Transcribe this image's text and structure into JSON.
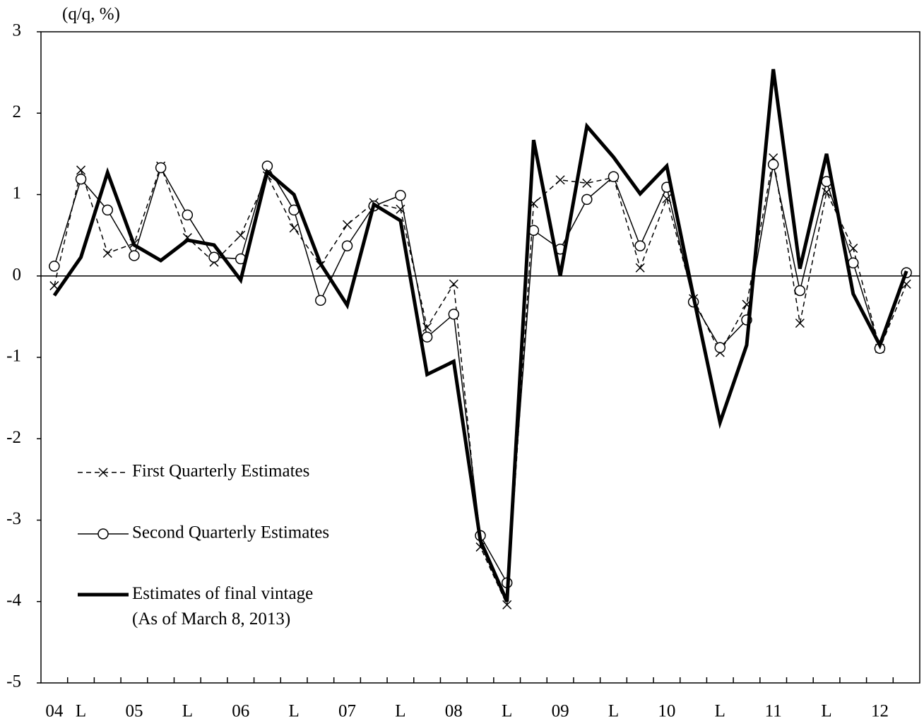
{
  "chart_data": {
    "type": "line",
    "y_axis_label": "(q/q, %)",
    "categories": [
      "04",
      "L",
      null,
      "05",
      null,
      "L",
      null,
      "06",
      null,
      "L",
      null,
      "07",
      null,
      "L",
      null,
      "08",
      null,
      "L",
      null,
      "09",
      null,
      "L",
      null,
      "10",
      null,
      "L",
      null,
      "11",
      null,
      "L",
      null,
      "12",
      null
    ],
    "series": [
      {
        "name": "First Quarterly Estimates",
        "color": "#000000",
        "line_style": "dashed",
        "marker": "x",
        "values": [
          -0.12,
          1.3,
          0.28,
          0.4,
          1.35,
          0.47,
          0.17,
          0.5,
          1.23,
          0.59,
          0.13,
          0.63,
          0.9,
          0.82,
          -0.63,
          -0.1,
          -3.33,
          -4.04,
          0.89,
          1.18,
          1.14,
          1.21,
          0.1,
          0.95,
          -0.28,
          -0.94,
          -0.35,
          1.45,
          -0.58,
          1.03,
          0.34,
          -0.89,
          -0.1
        ]
      },
      {
        "name": "Second Quarterly Estimates",
        "color": "#000000",
        "line_style": "solid",
        "marker": "circle",
        "values": [
          0.12,
          1.19,
          0.81,
          0.25,
          1.33,
          0.75,
          0.23,
          0.21,
          1.35,
          0.81,
          -0.3,
          0.37,
          0.86,
          0.99,
          -0.75,
          -0.47,
          -3.19,
          -3.77,
          0.56,
          0.33,
          0.94,
          1.22,
          0.37,
          1.09,
          -0.32,
          -0.88,
          -0.54,
          1.37,
          -0.18,
          1.16,
          0.16,
          -0.89,
          0.04
        ]
      },
      {
        "name": "Estimates of final vintage\n(As of March 8, 2013)",
        "color": "#000000",
        "line_style": "bold",
        "marker": "none",
        "values": [
          -0.24,
          0.23,
          1.27,
          0.38,
          0.19,
          0.44,
          0.38,
          -0.05,
          1.28,
          1.0,
          0.15,
          -0.36,
          0.88,
          0.68,
          -1.21,
          -1.05,
          -3.25,
          -4.0,
          1.67,
          0.0,
          1.84,
          1.46,
          1.01,
          1.35,
          -0.25,
          -1.8,
          -0.85,
          2.54,
          0.09,
          1.5,
          -0.22,
          -0.85,
          0.06
        ]
      }
    ],
    "ylim": [
      -5,
      3
    ],
    "yticks": [
      -5,
      -4,
      -3,
      -2,
      -1,
      0,
      1,
      2,
      3
    ],
    "grid": false,
    "legend": "left"
  }
}
